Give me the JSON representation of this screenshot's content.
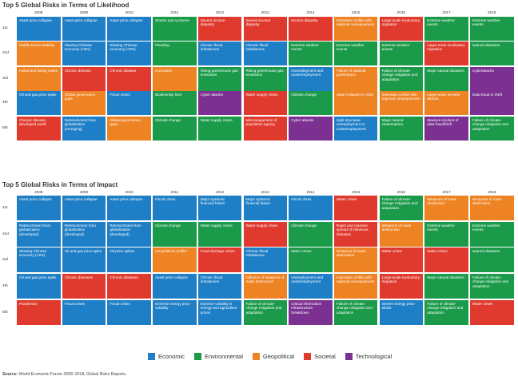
{
  "colors": {
    "Economic": "#1f7fc6",
    "Environmental": "#1b9a4a",
    "Geopolitical": "#ee8324",
    "Societal": "#e03a2e",
    "Technological": "#7c3192"
  },
  "legend": [
    "Economic",
    "Environmental",
    "Geopolitical",
    "Societal",
    "Technological"
  ],
  "source": {
    "label": "Source:",
    "text": "World Economic Forum 2008–2018, Global Risks Reports."
  },
  "ranks": [
    "1st",
    "2nd",
    "3rd",
    "4th",
    "5th"
  ],
  "chart_data": [
    {
      "type": "table",
      "title": "Top 5 Global Risks in Terms of Likelihood",
      "years": [
        "2008",
        "2009",
        "2010",
        "2011",
        "2012",
        "2013",
        "2014",
        "2015",
        "2016",
        "2017",
        "2018"
      ],
      "rows": [
        [
          {
            "text": "Asset price collapse",
            "category": "Economic"
          },
          {
            "text": "Asset price collapse",
            "category": "Economic"
          },
          {
            "text": "Asset price collapse",
            "category": "Economic"
          },
          {
            "text": "Storms and cyclones",
            "category": "Environmental"
          },
          {
            "text": "Severe income disparity",
            "category": "Societal"
          },
          {
            "text": "Severe income disparity",
            "category": "Societal"
          },
          {
            "text": "Income disparity",
            "category": "Societal"
          },
          {
            "text": "Interstate conflict with regional consequences",
            "category": "Geopolitical"
          },
          {
            "text": "Large-scale involuntary migration",
            "category": "Societal"
          },
          {
            "text": "Extreme weather events",
            "category": "Environmental"
          },
          {
            "text": "Extreme weather events",
            "category": "Environmental"
          }
        ],
        [
          {
            "text": "Middle East instability",
            "category": "Geopolitical"
          },
          {
            "text": "Slowing Chinese economy (<6%)",
            "category": "Economic"
          },
          {
            "text": "Slowing Chinese economy (<6%)",
            "category": "Economic"
          },
          {
            "text": "Flooding",
            "category": "Environmental"
          },
          {
            "text": "Chronic fiscal imbalances",
            "category": "Economic"
          },
          {
            "text": "Chronic fiscal imbalances",
            "category": "Economic"
          },
          {
            "text": "Extreme weather events",
            "category": "Environmental"
          },
          {
            "text": "Extreme weather events",
            "category": "Environmental"
          },
          {
            "text": "Extreme weather events",
            "category": "Environmental"
          },
          {
            "text": "Large-scale involuntary migration",
            "category": "Societal"
          },
          {
            "text": "Natural disasters",
            "category": "Environmental"
          }
        ],
        [
          {
            "text": "Failed and failing states",
            "category": "Geopolitical"
          },
          {
            "text": "Chronic disease",
            "category": "Societal"
          },
          {
            "text": "Chronic disease",
            "category": "Societal"
          },
          {
            "text": "Corruption",
            "category": "Geopolitical"
          },
          {
            "text": "Rising greenhouse gas emissions",
            "category": "Environmental"
          },
          {
            "text": "Rising greenhouse gas emissions",
            "category": "Environmental"
          },
          {
            "text": "Unemployment and underemployment",
            "category": "Economic"
          },
          {
            "text": "Failure of national governance",
            "category": "Geopolitical"
          },
          {
            "text": "Failure of climate-change mitigation and adaptation",
            "category": "Environmental"
          },
          {
            "text": "Major natural disasters",
            "category": "Environmental"
          },
          {
            "text": "Cyberattacks",
            "category": "Technological"
          }
        ],
        [
          {
            "text": "Oil and gas price spike",
            "category": "Economic"
          },
          {
            "text": "Global governance gaps",
            "category": "Geopolitical"
          },
          {
            "text": "Fiscal crises",
            "category": "Economic"
          },
          {
            "text": "Biodiversity loss",
            "category": "Environmental"
          },
          {
            "text": "Cyber attacks",
            "category": "Technological"
          },
          {
            "text": "Water supply crises",
            "category": "Societal"
          },
          {
            "text": "Climate change",
            "category": "Environmental"
          },
          {
            "text": "State collapse or crisis",
            "category": "Geopolitical"
          },
          {
            "text": "Interstate conflict with regional consequences",
            "category": "Geopolitical"
          },
          {
            "text": "Large-scale terrorist attacks",
            "category": "Geopolitical"
          },
          {
            "text": "Data fraud or theft",
            "category": "Technological"
          }
        ],
        [
          {
            "text": "Chronic disease, developed world",
            "category": "Societal"
          },
          {
            "text": "Retrenchment from globalization (emerging)",
            "category": "Economic"
          },
          {
            "text": "Global governance gaps",
            "category": "Geopolitical"
          },
          {
            "text": "Climate change",
            "category": "Environmental"
          },
          {
            "text": "Water supply crises",
            "category": "Environmental"
          },
          {
            "text": "Mismanagement of population ageing",
            "category": "Societal"
          },
          {
            "text": "Cyber attacks",
            "category": "Technological"
          },
          {
            "text": "High structural unemployment or underemployment",
            "category": "Economic"
          },
          {
            "text": "Major natural catastrophes",
            "category": "Environmental"
          },
          {
            "text": "Massive incident of data fraud/theft",
            "category": "Technological"
          },
          {
            "text": "Failure of climate-change mitigation and adaptation",
            "category": "Environmental"
          }
        ]
      ]
    },
    {
      "type": "table",
      "title": "Top 5 Global Risks in Terms of Impact",
      "years": [
        "2008",
        "2009",
        "2010",
        "2011",
        "2012",
        "2013",
        "2014",
        "2015",
        "2016",
        "2017",
        "2018"
      ],
      "rows": [
        [
          {
            "text": "Asset price collapse",
            "category": "Economic"
          },
          {
            "text": "Asset price collapse",
            "category": "Economic"
          },
          {
            "text": "Asset price collapse",
            "category": "Economic"
          },
          {
            "text": "Fiscal crises",
            "category": "Economic"
          },
          {
            "text": "Major systemic financial failure",
            "category": "Economic"
          },
          {
            "text": "Major systemic financial failure",
            "category": "Economic"
          },
          {
            "text": "Fiscal crises",
            "category": "Economic"
          },
          {
            "text": "Water crises",
            "category": "Societal"
          },
          {
            "text": "Failure of climate-change mitigation and adaptation",
            "category": "Environmental"
          },
          {
            "text": "Weapons of mass destruction",
            "category": "Geopolitical"
          },
          {
            "text": "Weapons of mass destruction",
            "category": "Geopolitical"
          }
        ],
        [
          {
            "text": "Retrenchment from globalization (developed)",
            "category": "Economic"
          },
          {
            "text": "Retrenchment from globalization (developed)",
            "category": "Economic"
          },
          {
            "text": "Retrenchment from globalization (developed)",
            "category": "Economic"
          },
          {
            "text": "Climate change",
            "category": "Environmental"
          },
          {
            "text": "Water supply crises",
            "category": "Environmental"
          },
          {
            "text": "Water supply crises",
            "category": "Societal"
          },
          {
            "text": "Climate change",
            "category": "Environmental"
          },
          {
            "text": "Rapid and massive spread of infectious diseases",
            "category": "Societal"
          },
          {
            "text": "Weapons of mass destruction",
            "category": "Geopolitical"
          },
          {
            "text": "Extreme weather events",
            "category": "Environmental"
          },
          {
            "text": "Extreme weather events",
            "category": "Environmental"
          }
        ],
        [
          {
            "text": "Slowing Chinese economy (<6%)",
            "category": "Economic"
          },
          {
            "text": "Oil and gas price spike",
            "category": "Economic"
          },
          {
            "text": "Oil price spikes",
            "category": "Economic"
          },
          {
            "text": "Geopolitical conflict",
            "category": "Geopolitical"
          },
          {
            "text": "Food shortage crises",
            "category": "Societal"
          },
          {
            "text": "Chronic fiscal imbalances",
            "category": "Economic"
          },
          {
            "text": "Water crises",
            "category": "Environmental"
          },
          {
            "text": "Weapons of mass destruction",
            "category": "Geopolitical"
          },
          {
            "text": "Water crises",
            "category": "Societal"
          },
          {
            "text": "Water crises",
            "category": "Societal"
          },
          {
            "text": "Natural disasters",
            "category": "Environmental"
          }
        ],
        [
          {
            "text": "Oil and gas price spike",
            "category": "Economic"
          },
          {
            "text": "Chronic diseases",
            "category": "Societal"
          },
          {
            "text": "Chronic diseases",
            "category": "Societal"
          },
          {
            "text": "Asset price collapse",
            "category": "Economic"
          },
          {
            "text": "Chronic fiscal imbalances",
            "category": "Economic"
          },
          {
            "text": "Diffusion of weapons of mass destruction",
            "category": "Geopolitical"
          },
          {
            "text": "Unemployment and underemployment",
            "category": "Economic"
          },
          {
            "text": "Interstate conflict with regional consequences",
            "category": "Geopolitical"
          },
          {
            "text": "Large-scale involuntary migration",
            "category": "Societal"
          },
          {
            "text": "Major natural disasters",
            "category": "Environmental"
          },
          {
            "text": "Failure of climate-change mitigation and adaptation",
            "category": "Environmental"
          }
        ],
        [
          {
            "text": "Pandemics",
            "category": "Societal"
          },
          {
            "text": "Fiscal crises",
            "category": "Economic"
          },
          {
            "text": "Fiscal crises",
            "category": "Economic"
          },
          {
            "text": "Extreme energy price volatility",
            "category": "Economic"
          },
          {
            "text": "Extreme volatility in energy and agriculture prices",
            "category": "Economic"
          },
          {
            "text": "Failure of climate-change mitigation and adaptation",
            "category": "Environmental"
          },
          {
            "text": "Critical information infrastructure breakdown",
            "category": "Technological"
          },
          {
            "text": "Failure of climate-change mitigation and adaptation",
            "category": "Environmental"
          },
          {
            "text": "Severe energy price shock",
            "category": "Economic"
          },
          {
            "text": "Failure of climate-change mitigation and adaptation",
            "category": "Environmental"
          },
          {
            "text": "Water crises",
            "category": "Societal"
          }
        ]
      ]
    }
  ]
}
